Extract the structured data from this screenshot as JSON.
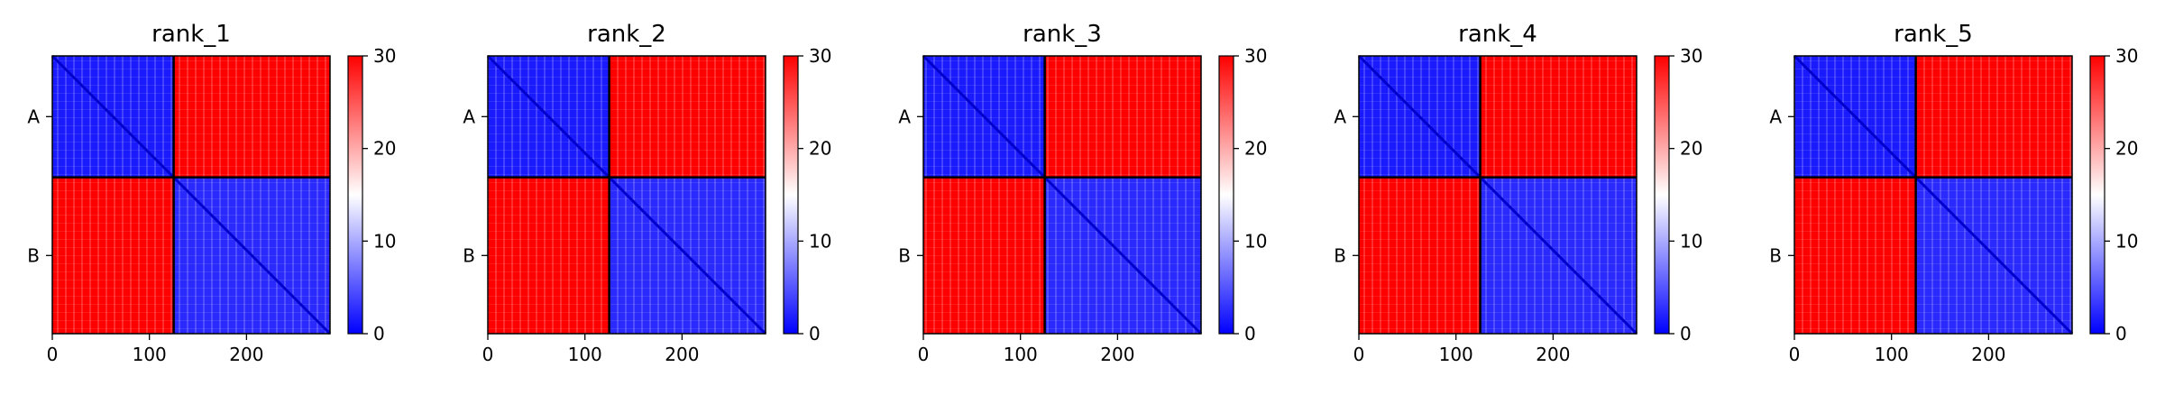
{
  "figure": {
    "colormap": [
      "#0000ff",
      "#ffffff",
      "#ff0000"
    ]
  },
  "chart_data": [
    {
      "type": "heatmap",
      "title": "rank_1",
      "x_ticks": [
        0,
        100,
        200
      ],
      "xlim": [
        0,
        286
      ],
      "chain_labels": [
        "A",
        "B"
      ],
      "chain_boundary": 125,
      "colorbar": {
        "ticks": [
          0,
          10,
          20,
          30
        ],
        "range": [
          0,
          30
        ]
      },
      "grid": false
    },
    {
      "type": "heatmap",
      "title": "rank_2",
      "x_ticks": [
        0,
        100,
        200
      ],
      "xlim": [
        0,
        286
      ],
      "chain_labels": [
        "A",
        "B"
      ],
      "chain_boundary": 125,
      "colorbar": {
        "ticks": [
          0,
          10,
          20,
          30
        ],
        "range": [
          0,
          30
        ]
      },
      "grid": false
    },
    {
      "type": "heatmap",
      "title": "rank_3",
      "x_ticks": [
        0,
        100,
        200
      ],
      "xlim": [
        0,
        286
      ],
      "chain_labels": [
        "A",
        "B"
      ],
      "chain_boundary": 125,
      "colorbar": {
        "ticks": [
          0,
          10,
          20,
          30
        ],
        "range": [
          0,
          30
        ]
      },
      "grid": false
    },
    {
      "type": "heatmap",
      "title": "rank_4",
      "x_ticks": [
        0,
        100,
        200
      ],
      "xlim": [
        0,
        286
      ],
      "chain_labels": [
        "A",
        "B"
      ],
      "chain_boundary": 125,
      "colorbar": {
        "ticks": [
          0,
          10,
          20,
          30
        ],
        "range": [
          0,
          30
        ]
      },
      "grid": false
    },
    {
      "type": "heatmap",
      "title": "rank_5",
      "x_ticks": [
        0,
        100,
        200
      ],
      "xlim": [
        0,
        286
      ],
      "chain_labels": [
        "A",
        "B"
      ],
      "chain_boundary": 125,
      "colorbar": {
        "ticks": [
          0,
          10,
          20,
          30
        ],
        "range": [
          0,
          30
        ]
      },
      "grid": false
    }
  ]
}
